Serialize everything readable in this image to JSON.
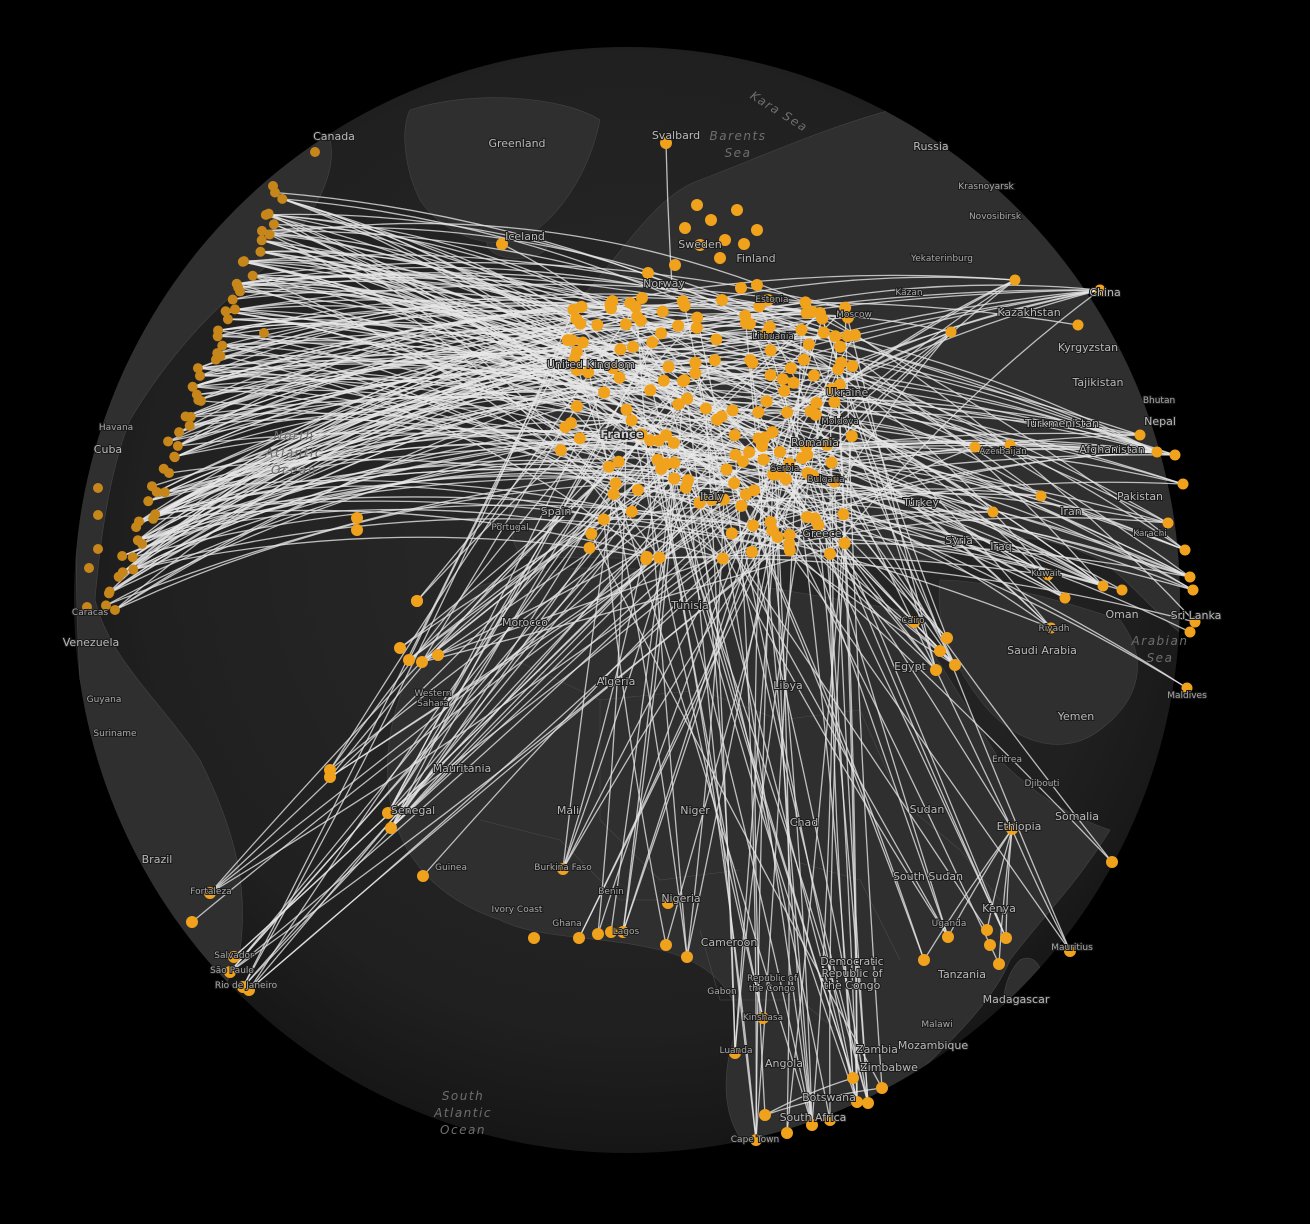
{
  "map": {
    "projection": "orthographic",
    "route_color": "#e8e8e8",
    "dot_color": "#f0a21c",
    "background": "#000000",
    "globe_color": "#222222"
  },
  "labels": [
    {
      "text": "Canada",
      "size": "mid"
    },
    {
      "text": "Greenland",
      "size": "mid"
    },
    {
      "text": "Svalbard",
      "size": "mid"
    },
    {
      "text": "Russia",
      "size": "mid"
    },
    {
      "text": "Krasnoyarsk",
      "size": "small"
    },
    {
      "text": "Novosibirsk",
      "size": "small"
    },
    {
      "text": "Yekaterinburg",
      "size": "small"
    },
    {
      "text": "Kazan",
      "size": "small"
    },
    {
      "text": "Moscow",
      "size": "small"
    },
    {
      "text": "Kazakhstan",
      "size": "mid"
    },
    {
      "text": "China",
      "size": "mid"
    },
    {
      "text": "Kyrgyzstan",
      "size": "mid"
    },
    {
      "text": "Tajikistan",
      "size": "mid"
    },
    {
      "text": "Bhutan",
      "size": "small"
    },
    {
      "text": "Nepal",
      "size": "mid"
    },
    {
      "text": "Turkmenistan",
      "size": "mid"
    },
    {
      "text": "Afghanistan",
      "size": "mid"
    },
    {
      "text": "Pakistan",
      "size": "mid"
    },
    {
      "text": "Iran",
      "size": "mid"
    },
    {
      "text": "Karachi",
      "size": "small"
    },
    {
      "text": "Iceland",
      "size": "mid"
    },
    {
      "text": "Sweden",
      "size": "mid"
    },
    {
      "text": "Finland",
      "size": "mid"
    },
    {
      "text": "Norway",
      "size": "mid"
    },
    {
      "text": "Estonia",
      "size": "small"
    },
    {
      "text": "Lithuania",
      "size": "small"
    },
    {
      "text": "United Kingdom",
      "size": "mid"
    },
    {
      "text": "Ukraine",
      "size": "mid"
    },
    {
      "text": "Moldova",
      "size": "small"
    },
    {
      "text": "Romania",
      "size": "mid"
    },
    {
      "text": "France",
      "size": "big"
    },
    {
      "text": "Serbia",
      "size": "small"
    },
    {
      "text": "Bulgaria",
      "size": "small"
    },
    {
      "text": "Azerbaijan",
      "size": "small"
    },
    {
      "text": "Italy",
      "size": "mid"
    },
    {
      "text": "Turkey",
      "size": "mid"
    },
    {
      "text": "Spain",
      "size": "mid"
    },
    {
      "text": "Portugal",
      "size": "small"
    },
    {
      "text": "Greece",
      "size": "mid"
    },
    {
      "text": "Syria",
      "size": "mid"
    },
    {
      "text": "Iraq",
      "size": "mid"
    },
    {
      "text": "Kuwait",
      "size": "small"
    },
    {
      "text": "Oman",
      "size": "mid"
    },
    {
      "text": "Sri Lanka",
      "size": "mid"
    },
    {
      "text": "Havana",
      "size": "small"
    },
    {
      "text": "Cuba",
      "size": "mid"
    },
    {
      "text": "Caracas",
      "size": "small"
    },
    {
      "text": "Venezuela",
      "size": "mid"
    },
    {
      "text": "Guyana",
      "size": "small"
    },
    {
      "text": "Suriname",
      "size": "small"
    },
    {
      "text": "Brazil",
      "size": "mid"
    },
    {
      "text": "Fortaleza",
      "size": "small"
    },
    {
      "text": "Salvador",
      "size": "small"
    },
    {
      "text": "São Paulo",
      "size": "small"
    },
    {
      "text": "Rio de Janeiro",
      "size": "small"
    },
    {
      "text": "Morocco",
      "size": "mid"
    },
    {
      "text": "Tunisia",
      "size": "mid"
    },
    {
      "text": "Algeria",
      "size": "mid"
    },
    {
      "text": "Libya",
      "size": "mid"
    },
    {
      "text": "Cairo",
      "size": "small"
    },
    {
      "text": "Egypt",
      "size": "mid"
    },
    {
      "text": "Riyadh",
      "size": "small"
    },
    {
      "text": "Saudi Arabia",
      "size": "mid"
    },
    {
      "text": "Maldives",
      "size": "small"
    },
    {
      "text": "Yemen",
      "size": "mid"
    },
    {
      "text": "Western Sahara",
      "size": "small"
    },
    {
      "text": "Mauritania",
      "size": "mid"
    },
    {
      "text": "Mali",
      "size": "mid"
    },
    {
      "text": "Niger",
      "size": "mid"
    },
    {
      "text": "Chad",
      "size": "mid"
    },
    {
      "text": "Sudan",
      "size": "mid"
    },
    {
      "text": "Eritrea",
      "size": "small"
    },
    {
      "text": "Djibouti",
      "size": "small"
    },
    {
      "text": "Somalia",
      "size": "mid"
    },
    {
      "text": "Ethiopia",
      "size": "mid"
    },
    {
      "text": "Senegal",
      "size": "mid"
    },
    {
      "text": "Guinea",
      "size": "small"
    },
    {
      "text": "Burkina Faso",
      "size": "small"
    },
    {
      "text": "Benin",
      "size": "small"
    },
    {
      "text": "Ivory Coast",
      "size": "small"
    },
    {
      "text": "Ghana",
      "size": "small"
    },
    {
      "text": "Lagos",
      "size": "small"
    },
    {
      "text": "Nigeria",
      "size": "mid"
    },
    {
      "text": "Cameroon",
      "size": "mid"
    },
    {
      "text": "South Sudan",
      "size": "mid"
    },
    {
      "text": "Uganda",
      "size": "small"
    },
    {
      "text": "Kenya",
      "size": "mid"
    },
    {
      "text": "Mauritius",
      "size": "small"
    },
    {
      "text": "Republic of the Congo",
      "size": "small"
    },
    {
      "text": "Gabon",
      "size": "small"
    },
    {
      "text": "Democratic Republic of the Congo",
      "size": "mid"
    },
    {
      "text": "Tanzania",
      "size": "mid"
    },
    {
      "text": "Madagascar",
      "size": "mid"
    },
    {
      "text": "Kinshasa",
      "size": "small"
    },
    {
      "text": "Malawi",
      "size": "small"
    },
    {
      "text": "Luanda",
      "size": "small"
    },
    {
      "text": "Angola",
      "size": "mid"
    },
    {
      "text": "Zambia",
      "size": "mid"
    },
    {
      "text": "Mozambique",
      "size": "mid"
    },
    {
      "text": "Zimbabwe",
      "size": "mid"
    },
    {
      "text": "Botswana",
      "size": "mid"
    },
    {
      "text": "South Africa",
      "size": "mid"
    },
    {
      "text": "Cape Town",
      "size": "small"
    }
  ],
  "seas": [
    {
      "text": "Kara Sea"
    },
    {
      "text": "Barents Sea"
    },
    {
      "text": "North Atlantic Ocean"
    },
    {
      "text": "Arabian Sea"
    },
    {
      "text": "South Atlantic Ocean"
    }
  ]
}
